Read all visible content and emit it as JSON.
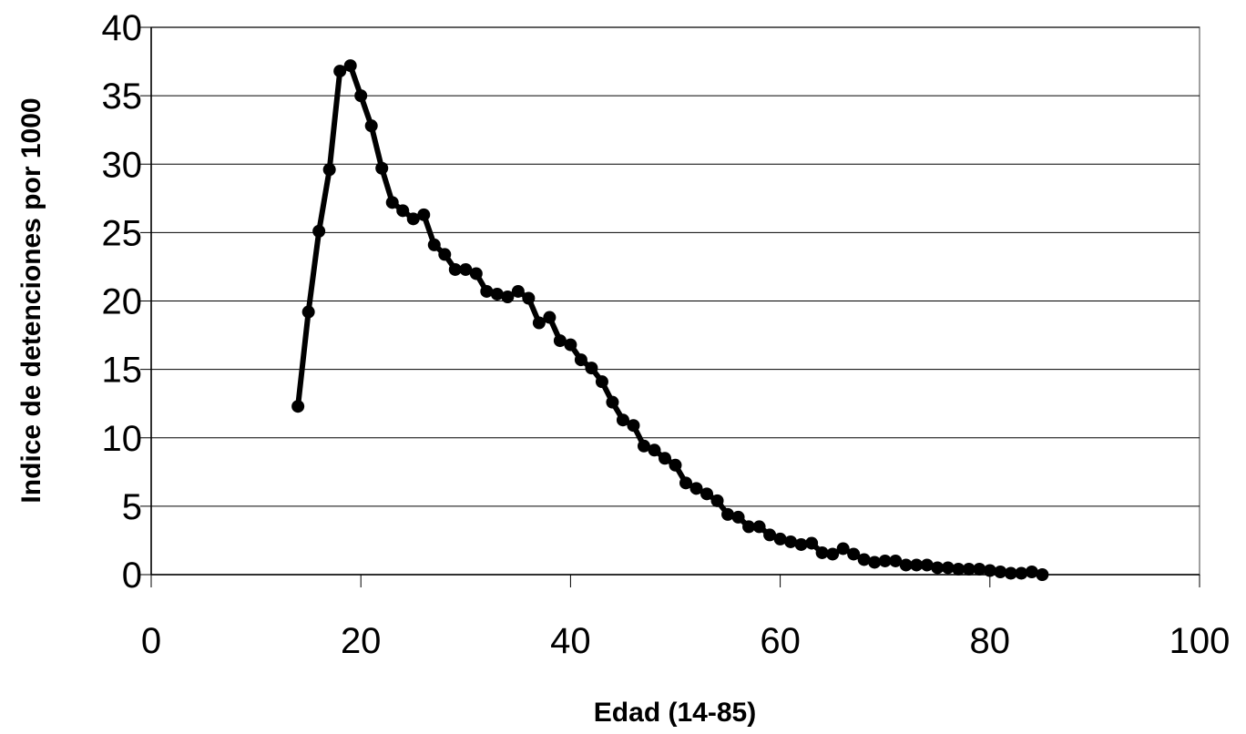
{
  "chart_data": {
    "type": "line",
    "title": "",
    "xlabel": "Edad (14-85)",
    "ylabel": "Indice de detenciones por 1000",
    "xlim": [
      0,
      100
    ],
    "ylim": [
      0,
      40
    ],
    "x_ticks": [
      0,
      20,
      40,
      60,
      80,
      100
    ],
    "y_ticks": [
      0,
      5,
      10,
      15,
      20,
      25,
      30,
      35,
      40
    ],
    "grid": "horizontal",
    "legend": "none",
    "colors": {
      "line": "#000000",
      "marker": "#000000",
      "grid": "#000000",
      "background": "#ffffff"
    },
    "series": [
      {
        "x": [
          14,
          15,
          16,
          17,
          18,
          19,
          20,
          21,
          22,
          23,
          24,
          25,
          26,
          27,
          28,
          29,
          30,
          31,
          32,
          33,
          34,
          35,
          36,
          37,
          38,
          39,
          40,
          41,
          42,
          43,
          44,
          45,
          46,
          47,
          48,
          49,
          50,
          51,
          52,
          53,
          54,
          55,
          56,
          57,
          58,
          59,
          60,
          61,
          62,
          63,
          64,
          65,
          66,
          67,
          68,
          69,
          70,
          71,
          72,
          73,
          74,
          75,
          76,
          77,
          78,
          79,
          80,
          81,
          82,
          83,
          84,
          85
        ],
        "y": [
          12.3,
          19.2,
          25.1,
          29.6,
          36.8,
          37.2,
          35.0,
          32.8,
          29.7,
          27.2,
          26.6,
          26.0,
          26.3,
          24.1,
          23.4,
          22.3,
          22.3,
          22.0,
          20.7,
          20.5,
          20.3,
          20.7,
          20.2,
          18.4,
          18.8,
          17.1,
          16.8,
          15.7,
          15.1,
          14.1,
          12.6,
          11.3,
          10.9,
          9.4,
          9.1,
          8.5,
          8.0,
          6.7,
          6.3,
          5.9,
          5.4,
          4.4,
          4.2,
          3.5,
          3.5,
          2.9,
          2.6,
          2.4,
          2.2,
          2.3,
          1.6,
          1.5,
          1.9,
          1.5,
          1.1,
          0.9,
          1.0,
          1.0,
          0.7,
          0.7,
          0.7,
          0.5,
          0.5,
          0.4,
          0.4,
          0.4,
          0.3,
          0.2,
          0.1,
          0.1,
          0.2,
          0.0
        ]
      }
    ]
  }
}
